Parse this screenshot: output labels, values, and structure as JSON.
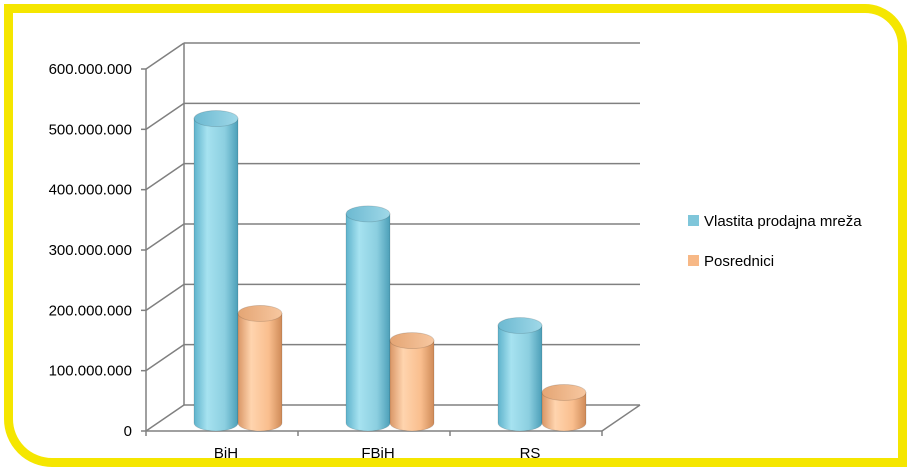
{
  "chart_data": {
    "type": "bar",
    "style": "3d-cylinder",
    "title": "",
    "xlabel": "",
    "ylabel": "",
    "categories": [
      "BiH",
      "FBiH",
      "RS"
    ],
    "series": [
      {
        "name": "Vlastita prodajna mreža",
        "values": [
          498000000,
          340000000,
          155000000
        ],
        "color": "#8ccfe0"
      },
      {
        "name": "Posrednici",
        "values": [
          175000000,
          130000000,
          44000000
        ],
        "color": "#f9be8e"
      }
    ],
    "ylim": [
      0,
      600000000
    ],
    "yticks": [
      0,
      100000000,
      200000000,
      300000000,
      400000000,
      500000000,
      600000000
    ],
    "ytick_labels": [
      "0",
      "100.000.000",
      "200.000.000",
      "300.000.000",
      "400.000.000",
      "500.000.000",
      "600.000.000"
    ],
    "grid": true,
    "legend_position": "right"
  },
  "colors": {
    "frame_border": "#f5e600",
    "grid": "#808080"
  }
}
